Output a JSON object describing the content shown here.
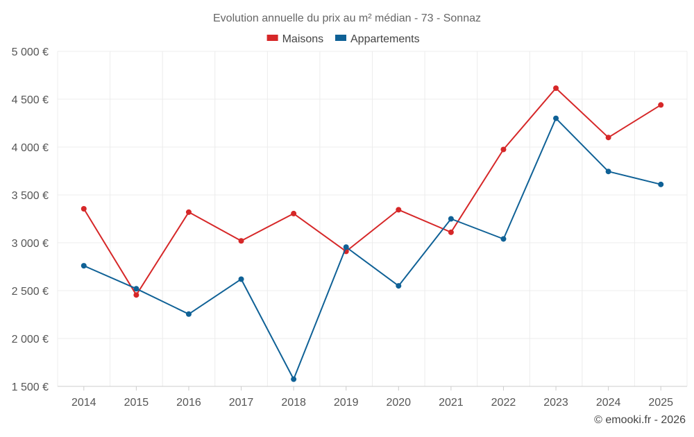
{
  "chart_data": {
    "type": "line",
    "title": "Evolution annuelle du prix au m² médian - 73 - Sonnaz",
    "categories": [
      "2014",
      "2015",
      "2016",
      "2017",
      "2018",
      "2019",
      "2020",
      "2021",
      "2022",
      "2023",
      "2024",
      "2025"
    ],
    "series": [
      {
        "name": "Maisons",
        "color": "#d62728",
        "values": [
          3355,
          2455,
          3320,
          3020,
          3305,
          2910,
          3345,
          3110,
          3975,
          4615,
          4100,
          4440
        ]
      },
      {
        "name": "Appartements",
        "color": "#0f6196",
        "values": [
          2760,
          2520,
          2255,
          2620,
          1575,
          2955,
          2550,
          3250,
          3040,
          4300,
          3745,
          3610
        ]
      }
    ],
    "ylim": [
      1500,
      5000
    ],
    "yticks": [
      1500,
      2000,
      2500,
      3000,
      3500,
      4000,
      4500,
      5000
    ],
    "ytick_labels": [
      "1 500 €",
      "2 000 €",
      "2 500 €",
      "3 000 €",
      "3 500 €",
      "4 000 €",
      "4 500 €",
      "5 000 €"
    ],
    "xlabel": "",
    "ylabel": "",
    "grid": true,
    "legend_position": "top-center"
  },
  "credit": "© emooki.fr - 2026"
}
